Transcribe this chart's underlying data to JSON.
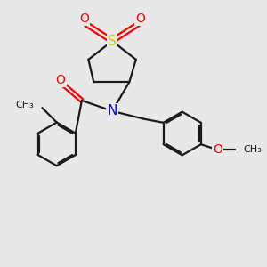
{
  "bg_color": "#e8e8e8",
  "bond_color": "#1a1a1a",
  "N_color": "#0000ff",
  "O_color": "#ff0000",
  "S_color": "#cccc00",
  "bond_width": 1.6,
  "fig_size": [
    3.0,
    3.0
  ],
  "dpi": 100,
  "xlim": [
    0,
    10
  ],
  "ylim": [
    0,
    10
  ]
}
